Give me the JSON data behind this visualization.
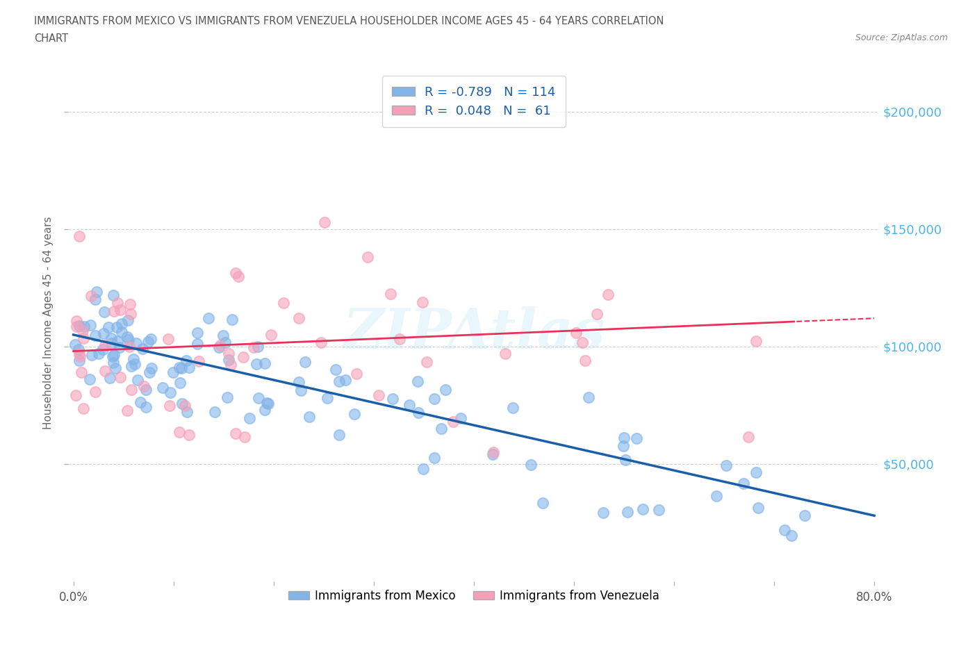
{
  "title_line1": "IMMIGRANTS FROM MEXICO VS IMMIGRANTS FROM VENEZUELA HOUSEHOLDER INCOME AGES 45 - 64 YEARS CORRELATION",
  "title_line2": "CHART",
  "source": "Source: ZipAtlas.com",
  "ylabel": "Householder Income Ages 45 - 64 years",
  "xlim": [
    -0.005,
    0.805
  ],
  "ylim": [
    0,
    220000
  ],
  "xtick_positions": [
    0.0,
    0.1,
    0.2,
    0.3,
    0.4,
    0.5,
    0.6,
    0.7,
    0.8
  ],
  "xticklabels": [
    "0.0%",
    "",
    "",
    "",
    "",
    "",
    "",
    "",
    "80.0%"
  ],
  "ytick_values": [
    50000,
    100000,
    150000,
    200000
  ],
  "ytick_labels": [
    "$50,000",
    "$100,000",
    "$150,000",
    "$200,000"
  ],
  "mexico_color": "#82b4e8",
  "venezuela_color": "#f4a0b8",
  "mexico_line_color": "#1a5fa8",
  "venezuela_line_color": "#e8305a",
  "legend_mexico": "R = -0.789   N = 114",
  "legend_venezuela": "R =  0.048   N =  61",
  "watermark": "ZIPAtlas",
  "background_color": "#ffffff",
  "grid_color": "#d0d0d0",
  "title_color": "#555555",
  "ytick_color": "#4db6e8"
}
